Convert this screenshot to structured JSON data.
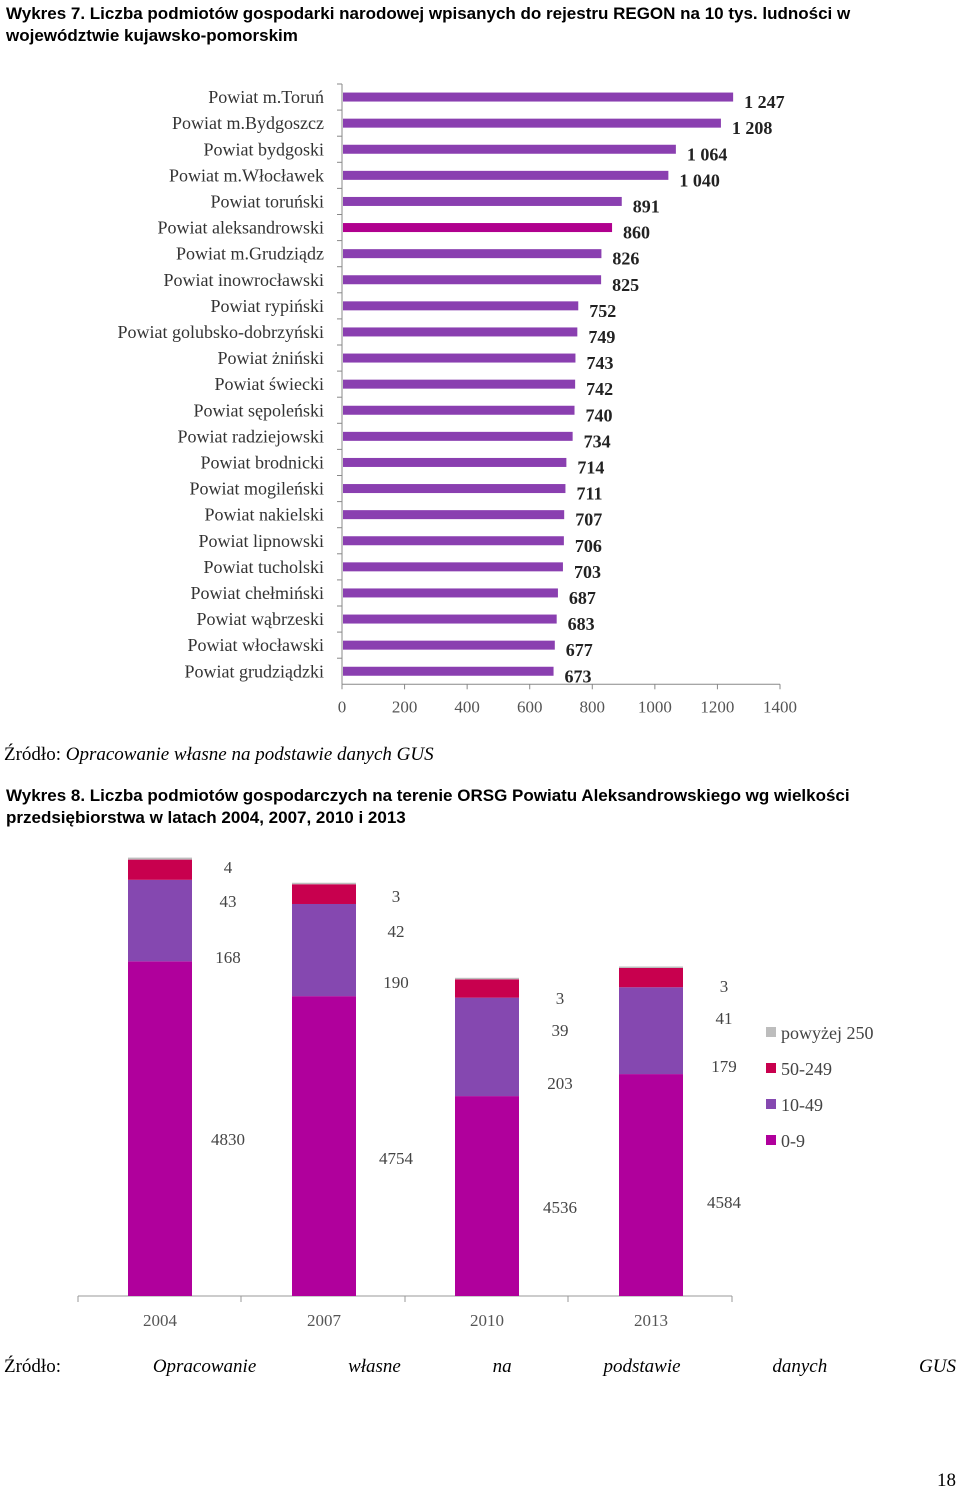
{
  "chart1": {
    "title_line1": "Wykres 7. Liczba podmiotów gospodarki narodowej wpisanych do rejestru REGON na 10 tys. ludności w",
    "title_line2": "województwie kujawsko-pomorskim",
    "source_label": "Źródło:",
    "source_text": "Opracowanie własne na podstawie danych GUS"
  },
  "chart2": {
    "title_line1": "Wykres 8. Liczba podmiotów gospodarczych na terenie ORSG Powiatu Aleksandrowskiego wg wielkości",
    "title_line2": "przedsiębiorstwa w latach 2004, 2007, 2010 i 2013",
    "source_label": "Źródło:",
    "source_words": [
      "Opracowanie",
      "własne",
      "na",
      "podstawie",
      "danych",
      "GUS"
    ]
  },
  "page_number": "18",
  "chart_data": [
    {
      "type": "bar",
      "orientation": "horizontal",
      "categories": [
        "Powiat m.Toruń",
        "Powiat m.Bydgoszcz",
        "Powiat bydgoski",
        "Powiat m.Włocławek",
        "Powiat toruński",
        "Powiat aleksandrowski",
        "Powiat m.Grudziądz",
        "Powiat inowrocławski",
        "Powiat rypiński",
        "Powiat golubsko-dobrzyński",
        "Powiat żniński",
        "Powiat świecki",
        "Powiat sępoleński",
        "Powiat radziejowski",
        "Powiat brodnicki",
        "Powiat mogileński",
        "Powiat nakielski",
        "Powiat lipnowski",
        "Powiat tucholski",
        "Powiat chełmiński",
        "Powiat wąbrzeski",
        "Powiat włocławski",
        "Powiat grudziądzki"
      ],
      "values": [
        1247,
        1208,
        1064,
        1040,
        891,
        860,
        826,
        825,
        752,
        749,
        743,
        742,
        740,
        734,
        714,
        711,
        707,
        706,
        703,
        687,
        683,
        677,
        673
      ],
      "value_labels": [
        "1 247",
        "1 208",
        "1 064",
        "1 040",
        "891",
        "860",
        "826",
        "825",
        "752",
        "749",
        "743",
        "742",
        "740",
        "734",
        "714",
        "711",
        "707",
        "706",
        "703",
        "687",
        "683",
        "677",
        "673"
      ],
      "highlight_category": "Powiat aleksandrowski",
      "xlim": [
        0,
        1400
      ],
      "xticks": [
        0,
        200,
        400,
        600,
        800,
        1000,
        1200,
        1400
      ],
      "colors": {
        "bar": "#8A3FB0",
        "highlight": "#B0008E"
      },
      "grid": false,
      "legend": "none"
    },
    {
      "type": "bar",
      "stacked": true,
      "categories": [
        "2004",
        "2007",
        "2010",
        "2013"
      ],
      "series": [
        {
          "name": "0-9",
          "values": [
            4830,
            4754,
            4536,
            4584
          ],
          "color": "#B0009C"
        },
        {
          "name": "10-49",
          "values": [
            168,
            190,
            203,
            179
          ],
          "color": "#8548B0"
        },
        {
          "name": "50-249",
          "values": [
            43,
            42,
            39,
            41
          ],
          "color": "#C8004E"
        },
        {
          "name": "powyżej 250",
          "values": [
            4,
            3,
            3,
            3
          ],
          "color": "#BDBDBD"
        }
      ],
      "legend": "right",
      "grid": false
    }
  ]
}
